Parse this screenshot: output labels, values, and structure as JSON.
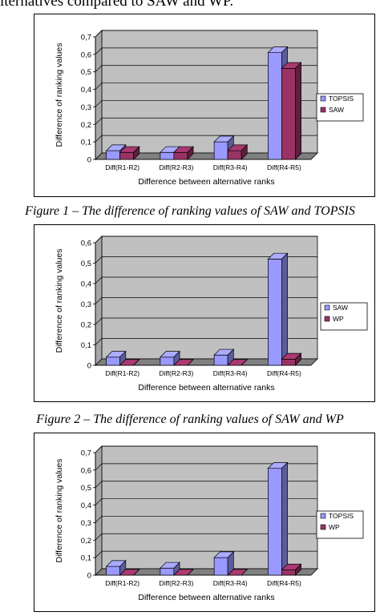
{
  "page": {
    "intro_text": "lternatives compared to SAW and WP.",
    "figure_captions": [
      "Figure 1 – The difference of ranking values of SAW and TOPSIS",
      "Figure 2 – The difference of ranking values of SAW and WP"
    ]
  },
  "colors": {
    "series_blue": "#9999ff",
    "series_maroon": "#993366",
    "plot_background": "#c0c0c0"
  },
  "chart_data": [
    {
      "type": "bar",
      "title": "",
      "xlabel": "Difference between alternative ranks",
      "ylabel": "Difference of ranking values",
      "categories": [
        "Diff(R1-R2)",
        "Diff(R2-R3)",
        "Diff(R3-R4)",
        "Diff(R4-R5)"
      ],
      "ylim": [
        0,
        0.7
      ],
      "yticks": [
        "0",
        "0,1",
        "0,2",
        "0,3",
        "0,4",
        "0,5",
        "0,6",
        "0,7"
      ],
      "grid": true,
      "legend_position": "right",
      "series": [
        {
          "name": "TOPSIS",
          "values": [
            0.05,
            0.04,
            0.1,
            0.61
          ]
        },
        {
          "name": "SAW",
          "values": [
            0.04,
            0.04,
            0.05,
            0.52
          ]
        }
      ]
    },
    {
      "type": "bar",
      "title": "",
      "xlabel": "Difference between alternative ranks",
      "ylabel": "Difference of ranking values",
      "categories": [
        "Diff(R1-R2)",
        "Diff(R2-R3)",
        "Diff(R3-R4)",
        "Diff(R4-R5)"
      ],
      "ylim": [
        0,
        0.6
      ],
      "yticks": [
        "0",
        "0,1",
        "0,2",
        "0,3",
        "0,4",
        "0,5",
        "0,6"
      ],
      "grid": true,
      "legend_position": "right",
      "series": [
        {
          "name": "SAW",
          "values": [
            0.04,
            0.04,
            0.05,
            0.52
          ]
        },
        {
          "name": "WP",
          "values": [
            0.0,
            0.0,
            0.0,
            0.03
          ]
        }
      ]
    },
    {
      "type": "bar",
      "title": "",
      "xlabel": "Difference between alternative ranks",
      "ylabel": "Difference of ranking values",
      "categories": [
        "Diff(R1-R2)",
        "Diff(R2-R3)",
        "Diff(R3-R4)",
        "Diff(R4-R5)"
      ],
      "ylim": [
        0,
        0.7
      ],
      "yticks": [
        "0",
        "0,1",
        "0,2",
        "0,3",
        "0,4",
        "0,5",
        "0,6",
        "0,7"
      ],
      "grid": true,
      "legend_position": "right",
      "series": [
        {
          "name": "TOPSIS",
          "values": [
            0.05,
            0.04,
            0.1,
            0.61
          ]
        },
        {
          "name": "WP",
          "values": [
            0.0,
            0.0,
            0.0,
            0.03
          ]
        }
      ]
    }
  ]
}
